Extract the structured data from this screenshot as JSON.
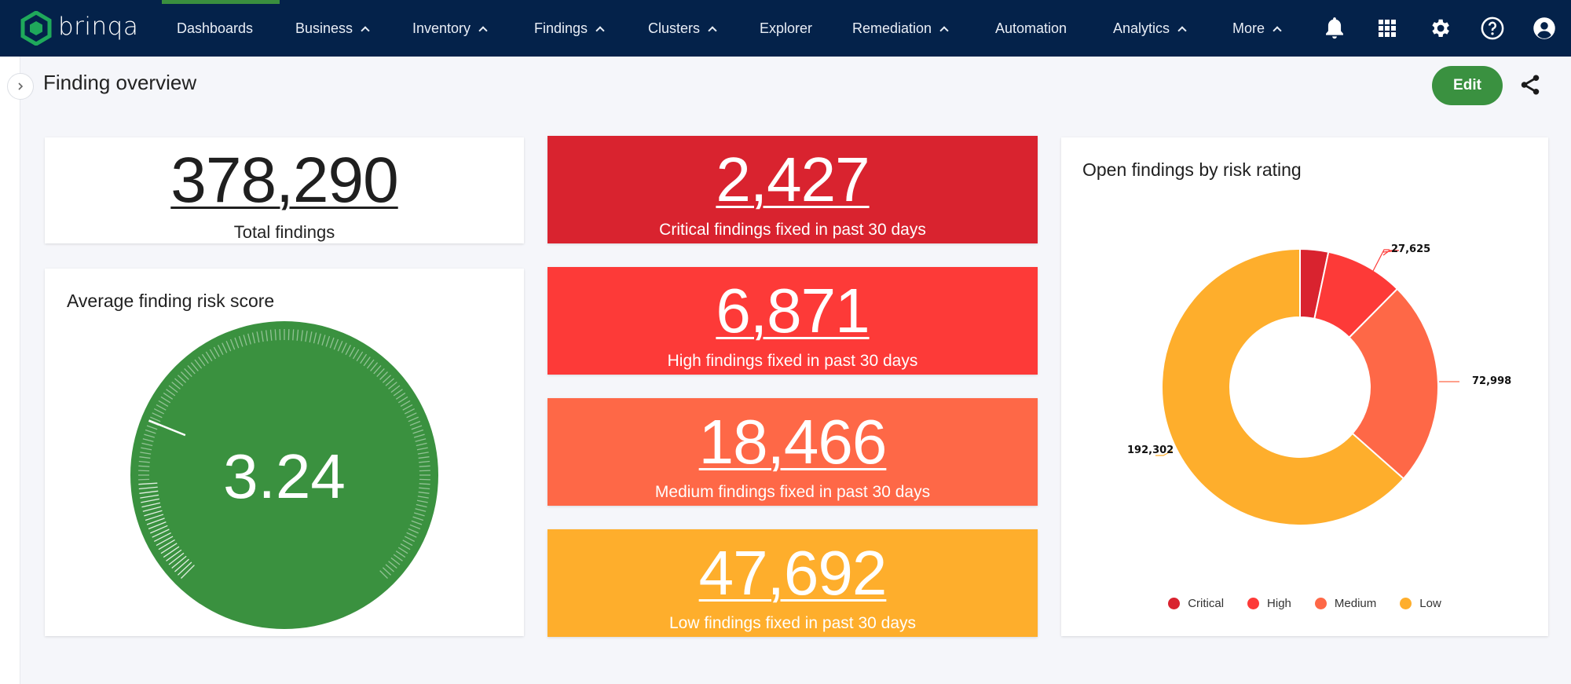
{
  "nav": {
    "logo_text": "brinqa",
    "items": [
      {
        "label": "Dashboards",
        "has_chevron": false,
        "active": true
      },
      {
        "label": "Business",
        "has_chevron": true
      },
      {
        "label": "Inventory",
        "has_chevron": true
      },
      {
        "label": "Findings",
        "has_chevron": true
      },
      {
        "label": "Clusters",
        "has_chevron": true
      },
      {
        "label": "Explorer",
        "has_chevron": false
      },
      {
        "label": "Remediation",
        "has_chevron": true
      },
      {
        "label": "Automation",
        "has_chevron": false
      },
      {
        "label": "Analytics",
        "has_chevron": true
      },
      {
        "label": "More",
        "has_chevron": true
      }
    ],
    "icons": [
      "bell-icon",
      "apps-grid-icon",
      "gear-icon",
      "help-icon",
      "account-icon"
    ]
  },
  "page": {
    "title": "Finding overview",
    "edit_label": "Edit"
  },
  "kpis": {
    "total": {
      "value": "378,290",
      "label": "Total findings"
    },
    "critical": {
      "value": "2,427",
      "label": "Critical findings fixed in past 30 days",
      "color": "#d9232f"
    },
    "high": {
      "value": "6,871",
      "label": "High findings fixed in past 30 days",
      "color": "#fd3a38"
    },
    "medium": {
      "value": "18,466",
      "label": "Medium findings fixed in past 30 days",
      "color": "#fe6847"
    },
    "low": {
      "value": "47,692",
      "label": "Low findings fixed in past 30 days",
      "color": "#feae2c"
    }
  },
  "gauge": {
    "title": "Average finding risk score",
    "value": "3.24",
    "color": "#3a913f"
  },
  "chart_data": {
    "type": "pie",
    "title": "Open findings by risk rating",
    "donut": true,
    "categories": [
      "Critical",
      "High",
      "Medium",
      "Low"
    ],
    "values": [
      10000,
      27625,
      72998,
      192302
    ],
    "value_labels": [
      null,
      "27,625",
      "72,998",
      "192,302"
    ],
    "notes": "Critical slice unlabeled; value estimated (~3.3% of ring)",
    "colors": [
      "#d9232f",
      "#fd3a38",
      "#fe6847",
      "#feae2c"
    ],
    "legend_position": "bottom"
  }
}
